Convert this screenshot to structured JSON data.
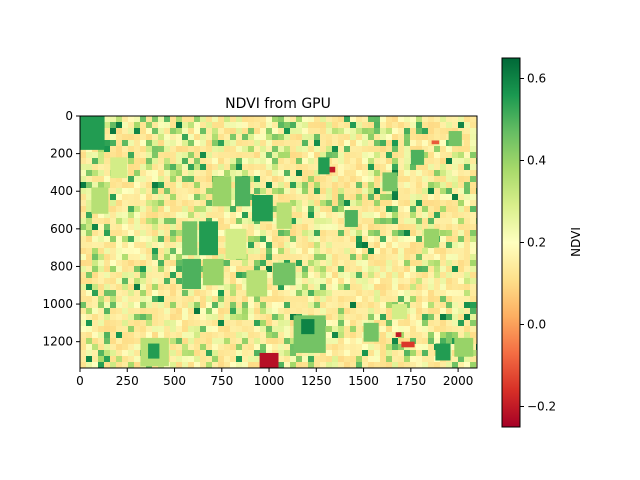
{
  "chart_data": {
    "type": "heatmap",
    "title": "NDVI from GPU",
    "xlabel": "",
    "ylabel": "",
    "x_range": [
      0,
      2100
    ],
    "y_range": [
      1340,
      0
    ],
    "x_ticks": [
      0,
      250,
      500,
      750,
      1000,
      1250,
      1500,
      1750,
      2000
    ],
    "y_ticks": [
      0,
      200,
      400,
      600,
      800,
      1000,
      1200
    ],
    "colorbar": {
      "label": "NDVI",
      "colormap": "RdYlGn",
      "range": [
        -0.25,
        0.65
      ],
      "ticks": [
        -0.2,
        0.0,
        0.2,
        0.4,
        0.6
      ],
      "tick_labels": [
        "−0.2",
        "0.0",
        "0.2",
        "0.4",
        "0.6"
      ],
      "colors": [
        "#a50026",
        "#d73027",
        "#f46d43",
        "#fdae61",
        "#fee08b",
        "#ffffbf",
        "#d9ef8b",
        "#a6d96a",
        "#66bd63",
        "#1a9850",
        "#006837"
      ]
    },
    "features": [
      {
        "type": "field",
        "x0": 0,
        "y0": 0,
        "x1": 130,
        "y1": 180,
        "ndvi": 0.55
      },
      {
        "type": "field",
        "x0": 540,
        "y0": 560,
        "x1": 620,
        "y1": 740,
        "ndvi": 0.45
      },
      {
        "type": "field",
        "x0": 630,
        "y0": 560,
        "x1": 730,
        "y1": 740,
        "ndvi": 0.55
      },
      {
        "type": "field",
        "x0": 540,
        "y0": 760,
        "x1": 640,
        "y1": 920,
        "ndvi": 0.5
      },
      {
        "type": "field",
        "x0": 650,
        "y0": 760,
        "x1": 760,
        "y1": 900,
        "ndvi": 0.4
      },
      {
        "type": "field",
        "x0": 770,
        "y0": 600,
        "x1": 880,
        "y1": 760,
        "ndvi": 0.3
      },
      {
        "type": "field",
        "x0": 820,
        "y0": 320,
        "x1": 900,
        "y1": 480,
        "ndvi": 0.5
      },
      {
        "type": "field",
        "x0": 700,
        "y0": 320,
        "x1": 800,
        "y1": 480,
        "ndvi": 0.4
      },
      {
        "type": "field",
        "x0": 910,
        "y0": 420,
        "x1": 1020,
        "y1": 560,
        "ndvi": 0.55
      },
      {
        "type": "field",
        "x0": 1040,
        "y0": 460,
        "x1": 1120,
        "y1": 600,
        "ndvi": 0.35
      },
      {
        "type": "field",
        "x0": 880,
        "y0": 820,
        "x1": 990,
        "y1": 960,
        "ndvi": 0.35
      },
      {
        "type": "field",
        "x0": 1020,
        "y0": 780,
        "x1": 1140,
        "y1": 900,
        "ndvi": 0.45
      },
      {
        "type": "field",
        "x0": 1130,
        "y0": 1060,
        "x1": 1300,
        "y1": 1260,
        "ndvi": 0.45
      },
      {
        "type": "field",
        "x0": 1170,
        "y0": 1080,
        "x1": 1240,
        "y1": 1160,
        "ndvi": 0.6
      },
      {
        "type": "field",
        "x0": 1260,
        "y0": 220,
        "x1": 1320,
        "y1": 310,
        "ndvi": 0.55
      },
      {
        "type": "field",
        "x0": 1400,
        "y0": 500,
        "x1": 1470,
        "y1": 590,
        "ndvi": 0.5
      },
      {
        "type": "field",
        "x0": 1600,
        "y0": 300,
        "x1": 1680,
        "y1": 400,
        "ndvi": 0.45
      },
      {
        "type": "field",
        "x0": 1750,
        "y0": 180,
        "x1": 1820,
        "y1": 260,
        "ndvi": 0.5
      },
      {
        "type": "field",
        "x0": 1950,
        "y0": 80,
        "x1": 2020,
        "y1": 160,
        "ndvi": 0.45
      },
      {
        "type": "field",
        "x0": 1880,
        "y0": 1210,
        "x1": 1960,
        "y1": 1300,
        "ndvi": 0.55
      },
      {
        "type": "field",
        "x0": 1980,
        "y0": 1180,
        "x1": 2080,
        "y1": 1280,
        "ndvi": 0.4
      },
      {
        "type": "field",
        "x0": 60,
        "y0": 380,
        "x1": 150,
        "y1": 520,
        "ndvi": 0.35
      },
      {
        "type": "field",
        "x0": 160,
        "y0": 220,
        "x1": 250,
        "y1": 330,
        "ndvi": 0.3
      },
      {
        "type": "field",
        "x0": 320,
        "y0": 1180,
        "x1": 470,
        "y1": 1330,
        "ndvi": 0.35
      },
      {
        "type": "field",
        "x0": 360,
        "y0": 1210,
        "x1": 420,
        "y1": 1290,
        "ndvi": 0.55
      },
      {
        "type": "field",
        "x0": 1500,
        "y0": 1100,
        "x1": 1580,
        "y1": 1200,
        "ndvi": 0.45
      },
      {
        "type": "field",
        "x0": 1820,
        "y0": 600,
        "x1": 1900,
        "y1": 700,
        "ndvi": 0.4
      },
      {
        "type": "field",
        "x0": 1650,
        "y0": 1000,
        "x1": 1730,
        "y1": 1080,
        "ndvi": 0.3
      },
      {
        "type": "field",
        "x0": 950,
        "y0": 1260,
        "x1": 1050,
        "y1": 1340,
        "ndvi": -0.22
      },
      {
        "type": "field",
        "x0": 1700,
        "y0": 1200,
        "x1": 1770,
        "y1": 1230,
        "ndvi": -0.15
      },
      {
        "type": "field",
        "x0": 1320,
        "y0": 270,
        "x1": 1350,
        "y1": 300,
        "ndvi": -0.2
      },
      {
        "type": "field",
        "x0": 1860,
        "y0": 130,
        "x1": 1900,
        "y1": 150,
        "ndvi": -0.1
      },
      {
        "type": "field",
        "x0": 1670,
        "y0": 1150,
        "x1": 1700,
        "y1": 1175,
        "ndvi": -0.2
      }
    ]
  }
}
